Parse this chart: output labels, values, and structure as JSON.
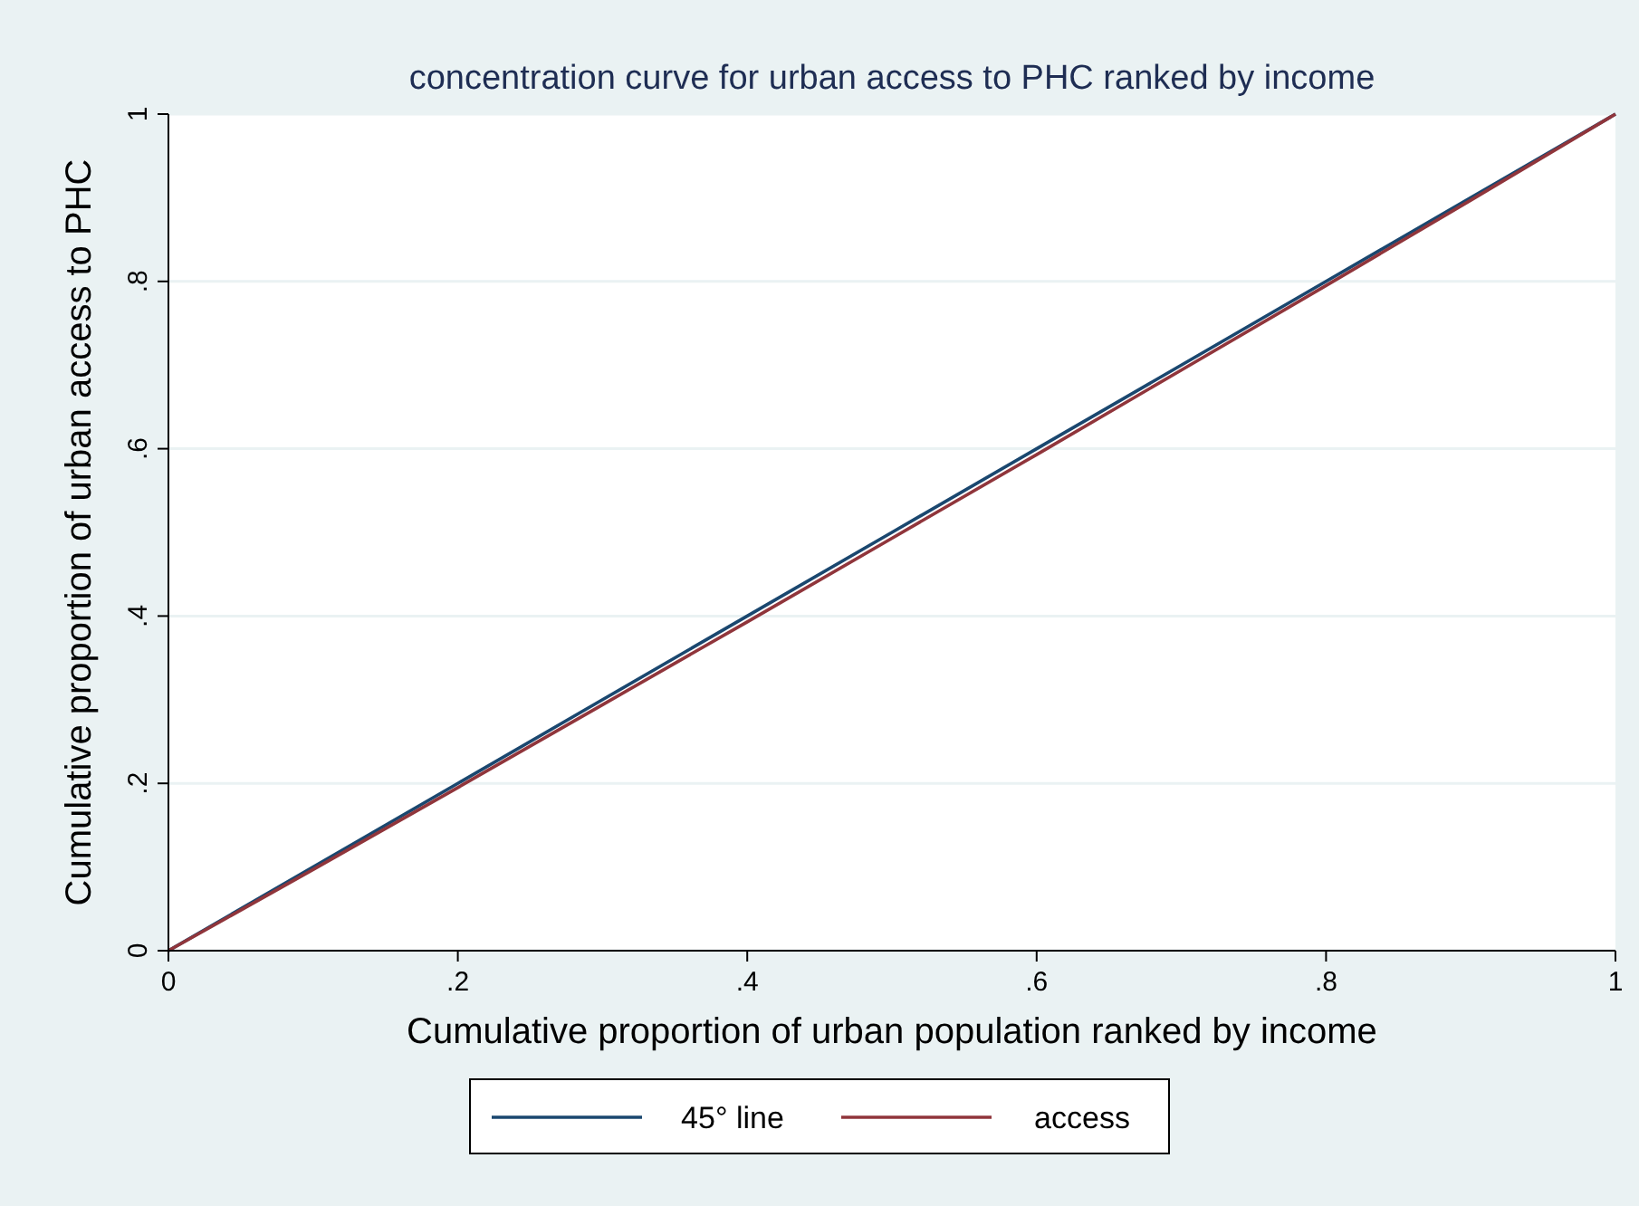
{
  "chart_data": {
    "type": "line",
    "title": "concentration curve for urban access to PHC ranked by income",
    "xlabel": "Cumulative proportion of urban population ranked by income",
    "ylabel": "Cumulative proportion of urban access to PHC",
    "x": [
      0,
      0.1,
      0.2,
      0.3,
      0.4,
      0.5,
      0.6,
      0.7,
      0.8,
      0.9,
      1
    ],
    "series": [
      {
        "name": "45° line",
        "color": "#1a476f",
        "values": [
          0,
          0.1,
          0.2,
          0.3,
          0.4,
          0.5,
          0.6,
          0.7,
          0.8,
          0.9,
          1
        ]
      },
      {
        "name": "access",
        "color": "#90353b",
        "values": [
          0,
          0.097,
          0.195,
          0.294,
          0.393,
          0.493,
          0.593,
          0.694,
          0.795,
          0.897,
          1
        ]
      }
    ],
    "xlim": [
      0,
      1
    ],
    "ylim": [
      0,
      1
    ],
    "xticks": [
      0,
      {
        "value": 0.2,
        "label": ".2"
      },
      {
        "value": 0.4,
        "label": ".4"
      },
      {
        "value": 0.6,
        "label": ".6"
      },
      {
        "value": 0.8,
        "label": ".8"
      },
      1
    ],
    "yticks": [
      0,
      {
        "value": 0.2,
        "label": ".2"
      },
      {
        "value": 0.4,
        "label": ".4"
      },
      {
        "value": 0.6,
        "label": ".6"
      },
      {
        "value": 0.8,
        "label": ".8"
      },
      1
    ],
    "grid": "y",
    "legend": "bottom",
    "marker": "none",
    "line_style": "solid"
  }
}
